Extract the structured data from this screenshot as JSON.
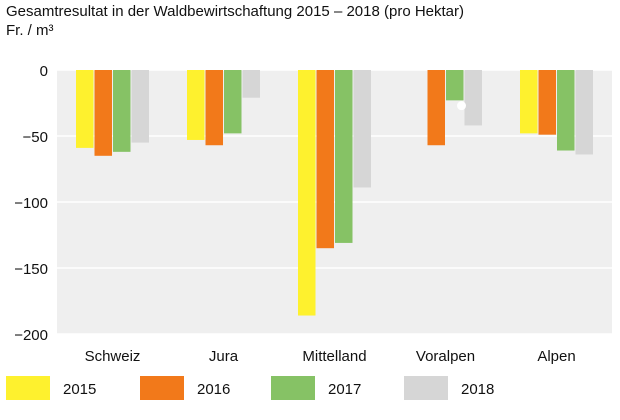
{
  "chart_data": {
    "type": "bar",
    "title": "Gesamtresultat in der Waldbewirtschaftung 2015 – 2018 (pro Hektar)",
    "ylabel": "Fr. / m³",
    "categories": [
      "Schweiz",
      "Jura",
      "Mittelland",
      "Voralpen",
      "Alpen"
    ],
    "ylim": [
      -200,
      0
    ],
    "yticks": [
      0,
      -50,
      -100,
      -150,
      -200
    ],
    "series": [
      {
        "name": "2015",
        "color": "#fef12e",
        "values": [
          -59,
          -53,
          -186,
          null,
          -48
        ]
      },
      {
        "name": "2016",
        "color": "#f2791a",
        "values": [
          -65,
          -57,
          -135,
          -57,
          -49
        ]
      },
      {
        "name": "2017",
        "color": "#86c265",
        "values": [
          -62,
          -48,
          -131,
          -23,
          -61
        ]
      },
      {
        "name": "2018",
        "color": "#d6d6d6",
        "values": [
          -55,
          -21,
          -89,
          -42,
          -64
        ]
      }
    ],
    "grid": true,
    "legend_position": "bottom",
    "plot_background": "#efefef"
  }
}
